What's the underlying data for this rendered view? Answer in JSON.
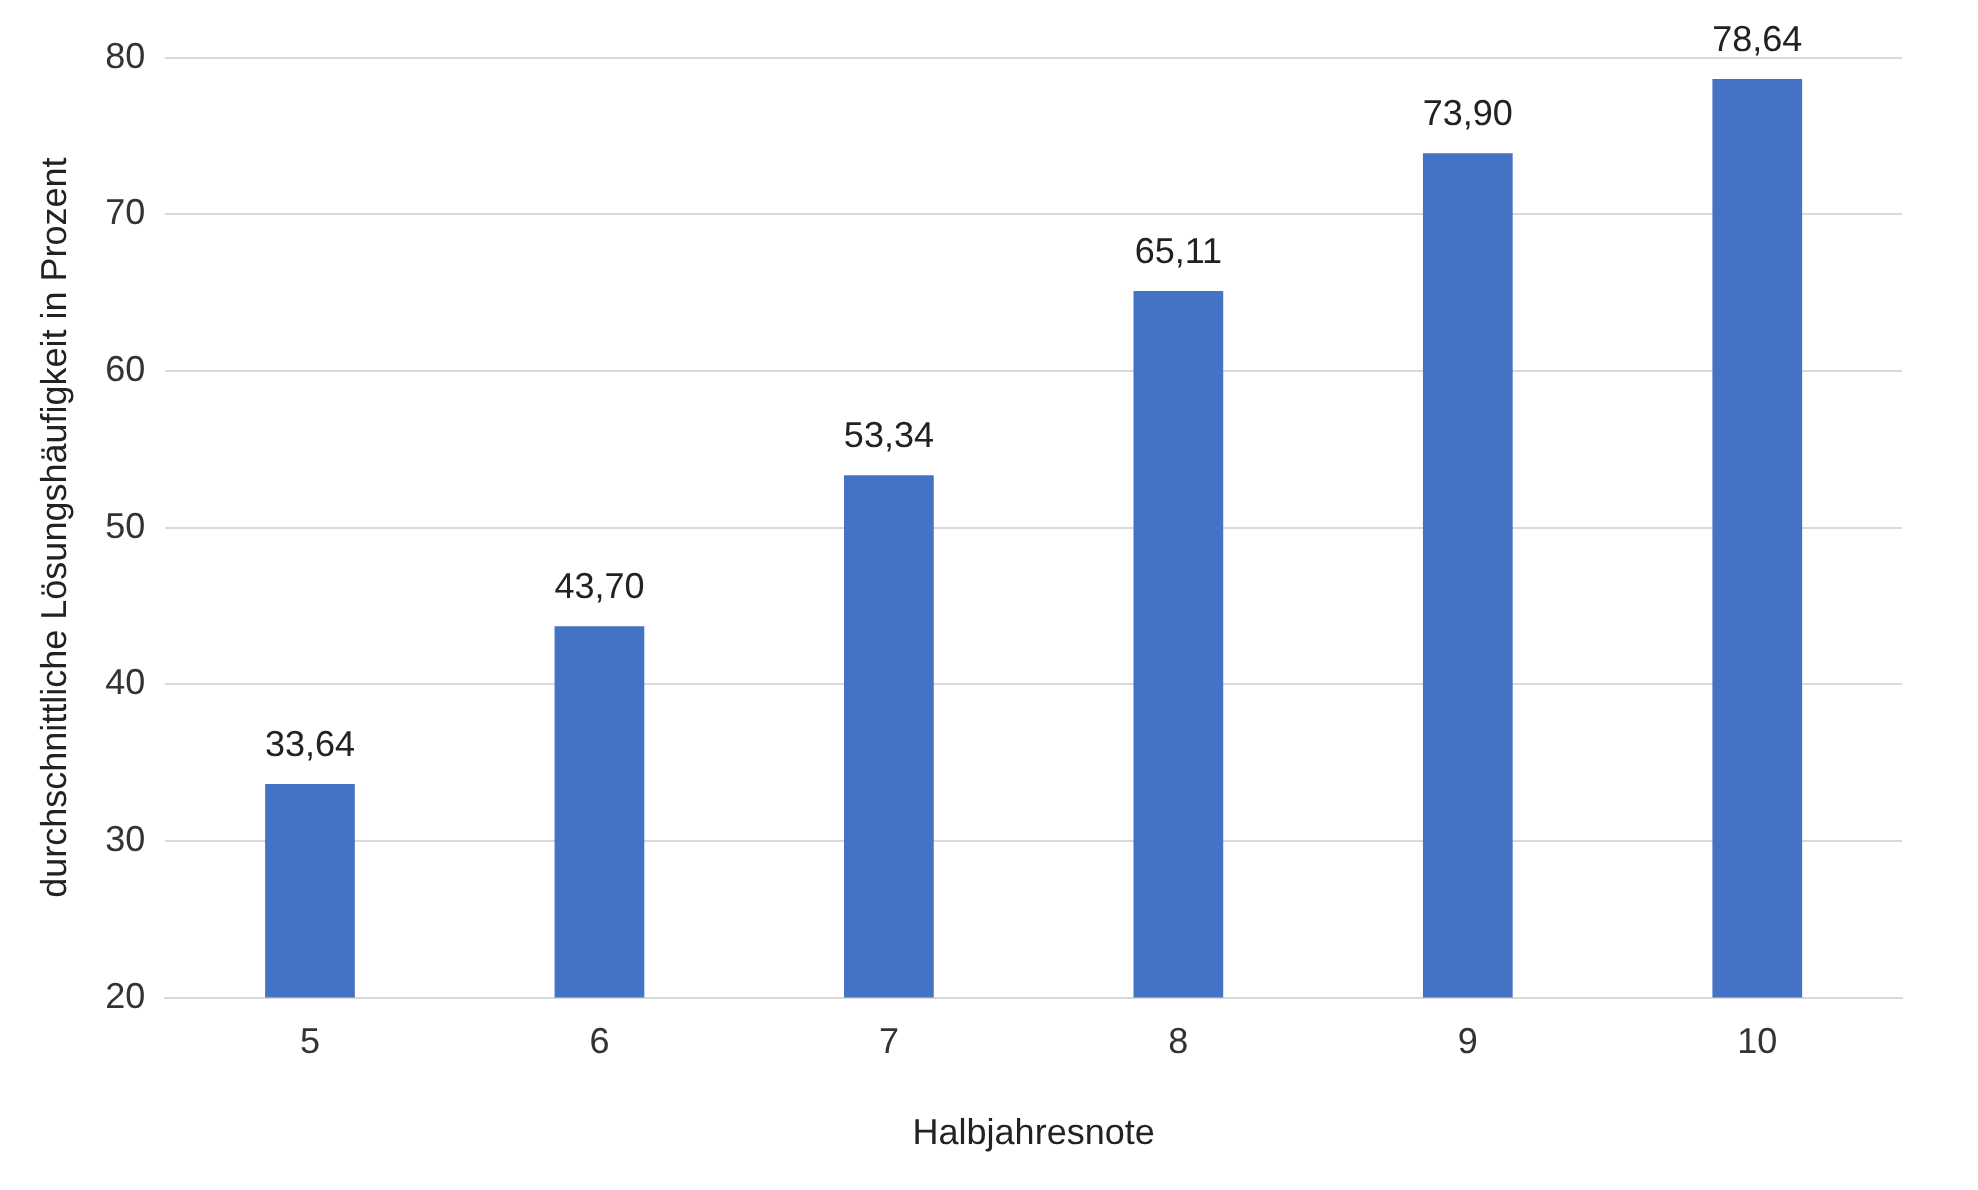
{
  "chart_data": {
    "type": "bar",
    "xlabel": "Halbjahresnote",
    "ylabel": "durchschnittliche Lösungshäufigkeit in Prozent",
    "categories": [
      "5",
      "6",
      "7",
      "8",
      "9",
      "10"
    ],
    "values": [
      33.64,
      43.7,
      53.34,
      65.11,
      73.9,
      78.64
    ],
    "value_labels": [
      "33,64",
      "43,70",
      "53,34",
      "65,11",
      "73,90",
      "78,64"
    ],
    "color": "#4472c4",
    "ylim": [
      20,
      80
    ],
    "yticks": [
      20,
      30,
      40,
      50,
      60,
      70,
      80
    ],
    "grid": "y"
  }
}
